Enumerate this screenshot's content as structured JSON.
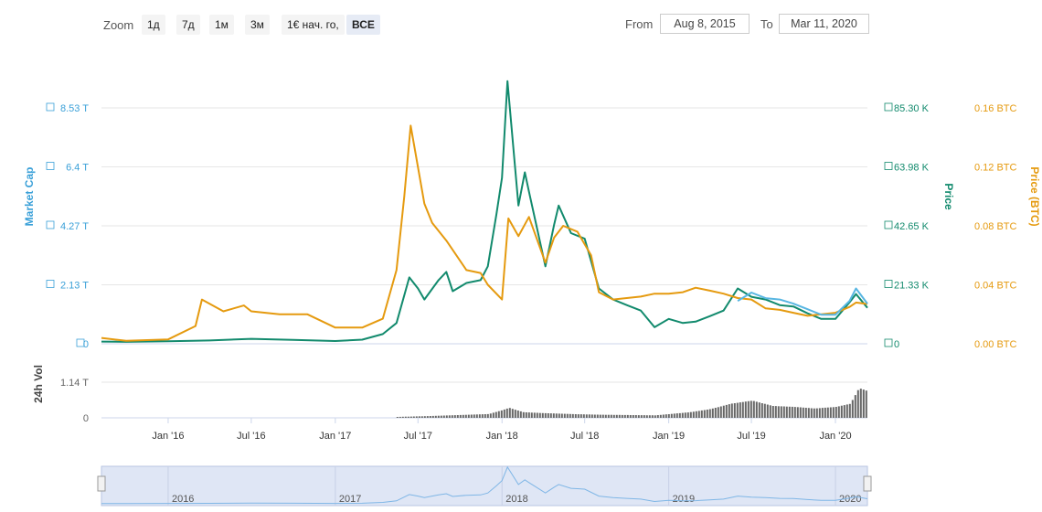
{
  "toolbar": {
    "zoom_label": "Zoom",
    "zoom_buttons": [
      "1д",
      "7д",
      "1м",
      "3м",
      "1€ нач. го,",
      "ВСЕ"
    ],
    "active_zoom": "ВСЕ",
    "from_label": "From",
    "from_value": "Aug 8, 2015",
    "to_label": "To",
    "to_value": "Mar 11, 2020"
  },
  "chart_data": {
    "type": "line",
    "axes": {
      "market_cap": {
        "title": "Market Cap",
        "ticks": [
          "8.53 T",
          "6.4 T",
          "4.27 T",
          "2.13 T",
          "0"
        ],
        "range": [
          0,
          8.53
        ],
        "color": "#3aa0d8"
      },
      "price": {
        "title": "Price",
        "ticks": [
          "85.30 K",
          "63.98 K",
          "42.65 K",
          "21.33 K",
          "0"
        ],
        "range": [
          0,
          85.3
        ],
        "color": "#128a6d"
      },
      "price_btc": {
        "title": "Price (BTC)",
        "ticks": [
          "0.16 BTC",
          "0.12 BTC",
          "0.08 BTC",
          "0.04 BTC",
          "0.00 BTC"
        ],
        "range": [
          0,
          0.16
        ],
        "color": "#e59a0f"
      },
      "volume": {
        "title": "24h Vol",
        "ticks": [
          "1.14 T",
          "0"
        ],
        "range": [
          0,
          1.14
        ],
        "color": "#666666"
      }
    },
    "x_ticks": [
      "Jan '16",
      "Jul '16",
      "Jan '17",
      "Jul '17",
      "Jan '18",
      "Jul '18",
      "Jan '19",
      "Jul '19",
      "Jan '20"
    ],
    "x_range": [
      "2015-08-08",
      "2020-03-11"
    ],
    "series": [
      {
        "axis": "price",
        "color": "#128a6d",
        "x": [
          "2015-08-08",
          "2015-10-01",
          "2016-01-01",
          "2016-04-01",
          "2016-07-01",
          "2016-10-01",
          "2017-01-01",
          "2017-03-01",
          "2017-04-15",
          "2017-05-15",
          "2017-06-12",
          "2017-07-01",
          "2017-07-15",
          "2017-08-15",
          "2017-09-01",
          "2017-09-15",
          "2017-10-15",
          "2017-11-15",
          "2017-12-01",
          "2017-12-20",
          "2018-01-01",
          "2018-01-13",
          "2018-02-06",
          "2018-02-20",
          "2018-03-01",
          "2018-04-06",
          "2018-04-25",
          "2018-05-05",
          "2018-06-01",
          "2018-07-01",
          "2018-08-01",
          "2018-09-01",
          "2018-10-01",
          "2018-11-01",
          "2018-12-01",
          "2019-01-01",
          "2019-02-01",
          "2019-03-01",
          "2019-04-01",
          "2019-05-01",
          "2019-06-01",
          "2019-07-01",
          "2019-08-01",
          "2019-09-01",
          "2019-10-01",
          "2019-11-01",
          "2019-12-01",
          "2020-01-01",
          "2020-02-01",
          "2020-02-15",
          "2020-03-11"
        ],
        "values": [
          0.8,
          0.7,
          0.9,
          1.2,
          1.8,
          1.4,
          1.0,
          1.5,
          3.5,
          7.5,
          24.0,
          20.0,
          16.0,
          23.0,
          26.0,
          19.0,
          22.0,
          23.0,
          28.0,
          47.0,
          60.0,
          95.0,
          50.0,
          62.0,
          55.0,
          28.0,
          43.0,
          50.0,
          40.0,
          38.0,
          20.0,
          16.0,
          14.0,
          12.0,
          6.0,
          9.0,
          7.5,
          8.0,
          10.0,
          12.0,
          20.0,
          17.0,
          16.0,
          14.0,
          13.5,
          11.0,
          9.0,
          9.0,
          15.0,
          18.0,
          13.0
        ]
      },
      {
        "axis": "price_btc",
        "color": "#e59a0f",
        "x": [
          "2015-08-08",
          "2015-10-01",
          "2016-01-01",
          "2016-03-01",
          "2016-03-15",
          "2016-05-01",
          "2016-06-15",
          "2016-07-01",
          "2016-09-01",
          "2016-11-01",
          "2017-01-01",
          "2017-03-01",
          "2017-04-15",
          "2017-05-15",
          "2017-06-01",
          "2017-06-15",
          "2017-07-15",
          "2017-08-01",
          "2017-09-01",
          "2017-10-15",
          "2017-11-15",
          "2017-12-01",
          "2018-01-01",
          "2018-01-15",
          "2018-02-06",
          "2018-03-01",
          "2018-04-06",
          "2018-04-25",
          "2018-05-15",
          "2018-06-15",
          "2018-07-15",
          "2018-08-01",
          "2018-09-01",
          "2018-10-01",
          "2018-11-01",
          "2018-12-01",
          "2019-01-01",
          "2019-02-01",
          "2019-03-01",
          "2019-04-01",
          "2019-05-01",
          "2019-06-01",
          "2019-07-01",
          "2019-08-01",
          "2019-09-01",
          "2019-10-01",
          "2019-11-01",
          "2019-12-01",
          "2020-01-01",
          "2020-02-01",
          "2020-02-15",
          "2020-03-11"
        ],
        "values": [
          0.004,
          0.002,
          0.003,
          0.012,
          0.03,
          0.022,
          0.026,
          0.022,
          0.02,
          0.02,
          0.011,
          0.011,
          0.017,
          0.05,
          0.1,
          0.148,
          0.095,
          0.082,
          0.07,
          0.05,
          0.048,
          0.04,
          0.03,
          0.085,
          0.073,
          0.086,
          0.055,
          0.072,
          0.08,
          0.076,
          0.06,
          0.035,
          0.03,
          0.031,
          0.032,
          0.034,
          0.034,
          0.035,
          0.038,
          0.036,
          0.034,
          0.031,
          0.03,
          0.024,
          0.023,
          0.021,
          0.019,
          0.02,
          0.021,
          0.025,
          0.028,
          0.027
        ]
      },
      {
        "axis": "market_cap",
        "color": "#58b6e2",
        "x": [
          "2019-06-01",
          "2019-07-01",
          "2019-08-01",
          "2019-09-01",
          "2019-10-01",
          "2019-11-01",
          "2019-12-01",
          "2020-01-01",
          "2020-02-01",
          "2020-02-15",
          "2020-03-11"
        ],
        "values": [
          1.55,
          1.85,
          1.65,
          1.6,
          1.45,
          1.25,
          1.05,
          1.05,
          1.55,
          2.0,
          1.45
        ]
      }
    ],
    "volume": {
      "axis": "volume",
      "color": "#666666",
      "x": [
        "2017-05-15",
        "2017-08-01",
        "2017-12-01",
        "2018-01-01",
        "2018-01-15",
        "2018-02-15",
        "2018-04-01",
        "2018-06-01",
        "2018-08-01",
        "2018-10-01",
        "2018-12-01",
        "2019-01-01",
        "2019-02-15",
        "2019-04-01",
        "2019-05-15",
        "2019-07-01",
        "2019-08-15",
        "2019-10-01",
        "2019-11-15",
        "2020-01-01",
        "2020-02-01",
        "2020-02-20",
        "2020-03-11"
      ],
      "values": [
        0.03,
        0.06,
        0.12,
        0.25,
        0.32,
        0.18,
        0.15,
        0.12,
        0.1,
        0.09,
        0.08,
        0.12,
        0.18,
        0.28,
        0.45,
        0.55,
        0.38,
        0.35,
        0.3,
        0.35,
        0.45,
        0.95,
        0.85
      ]
    },
    "navigator_ticks": [
      "2016",
      "2017",
      "2018",
      "2019",
      "2020"
    ]
  }
}
